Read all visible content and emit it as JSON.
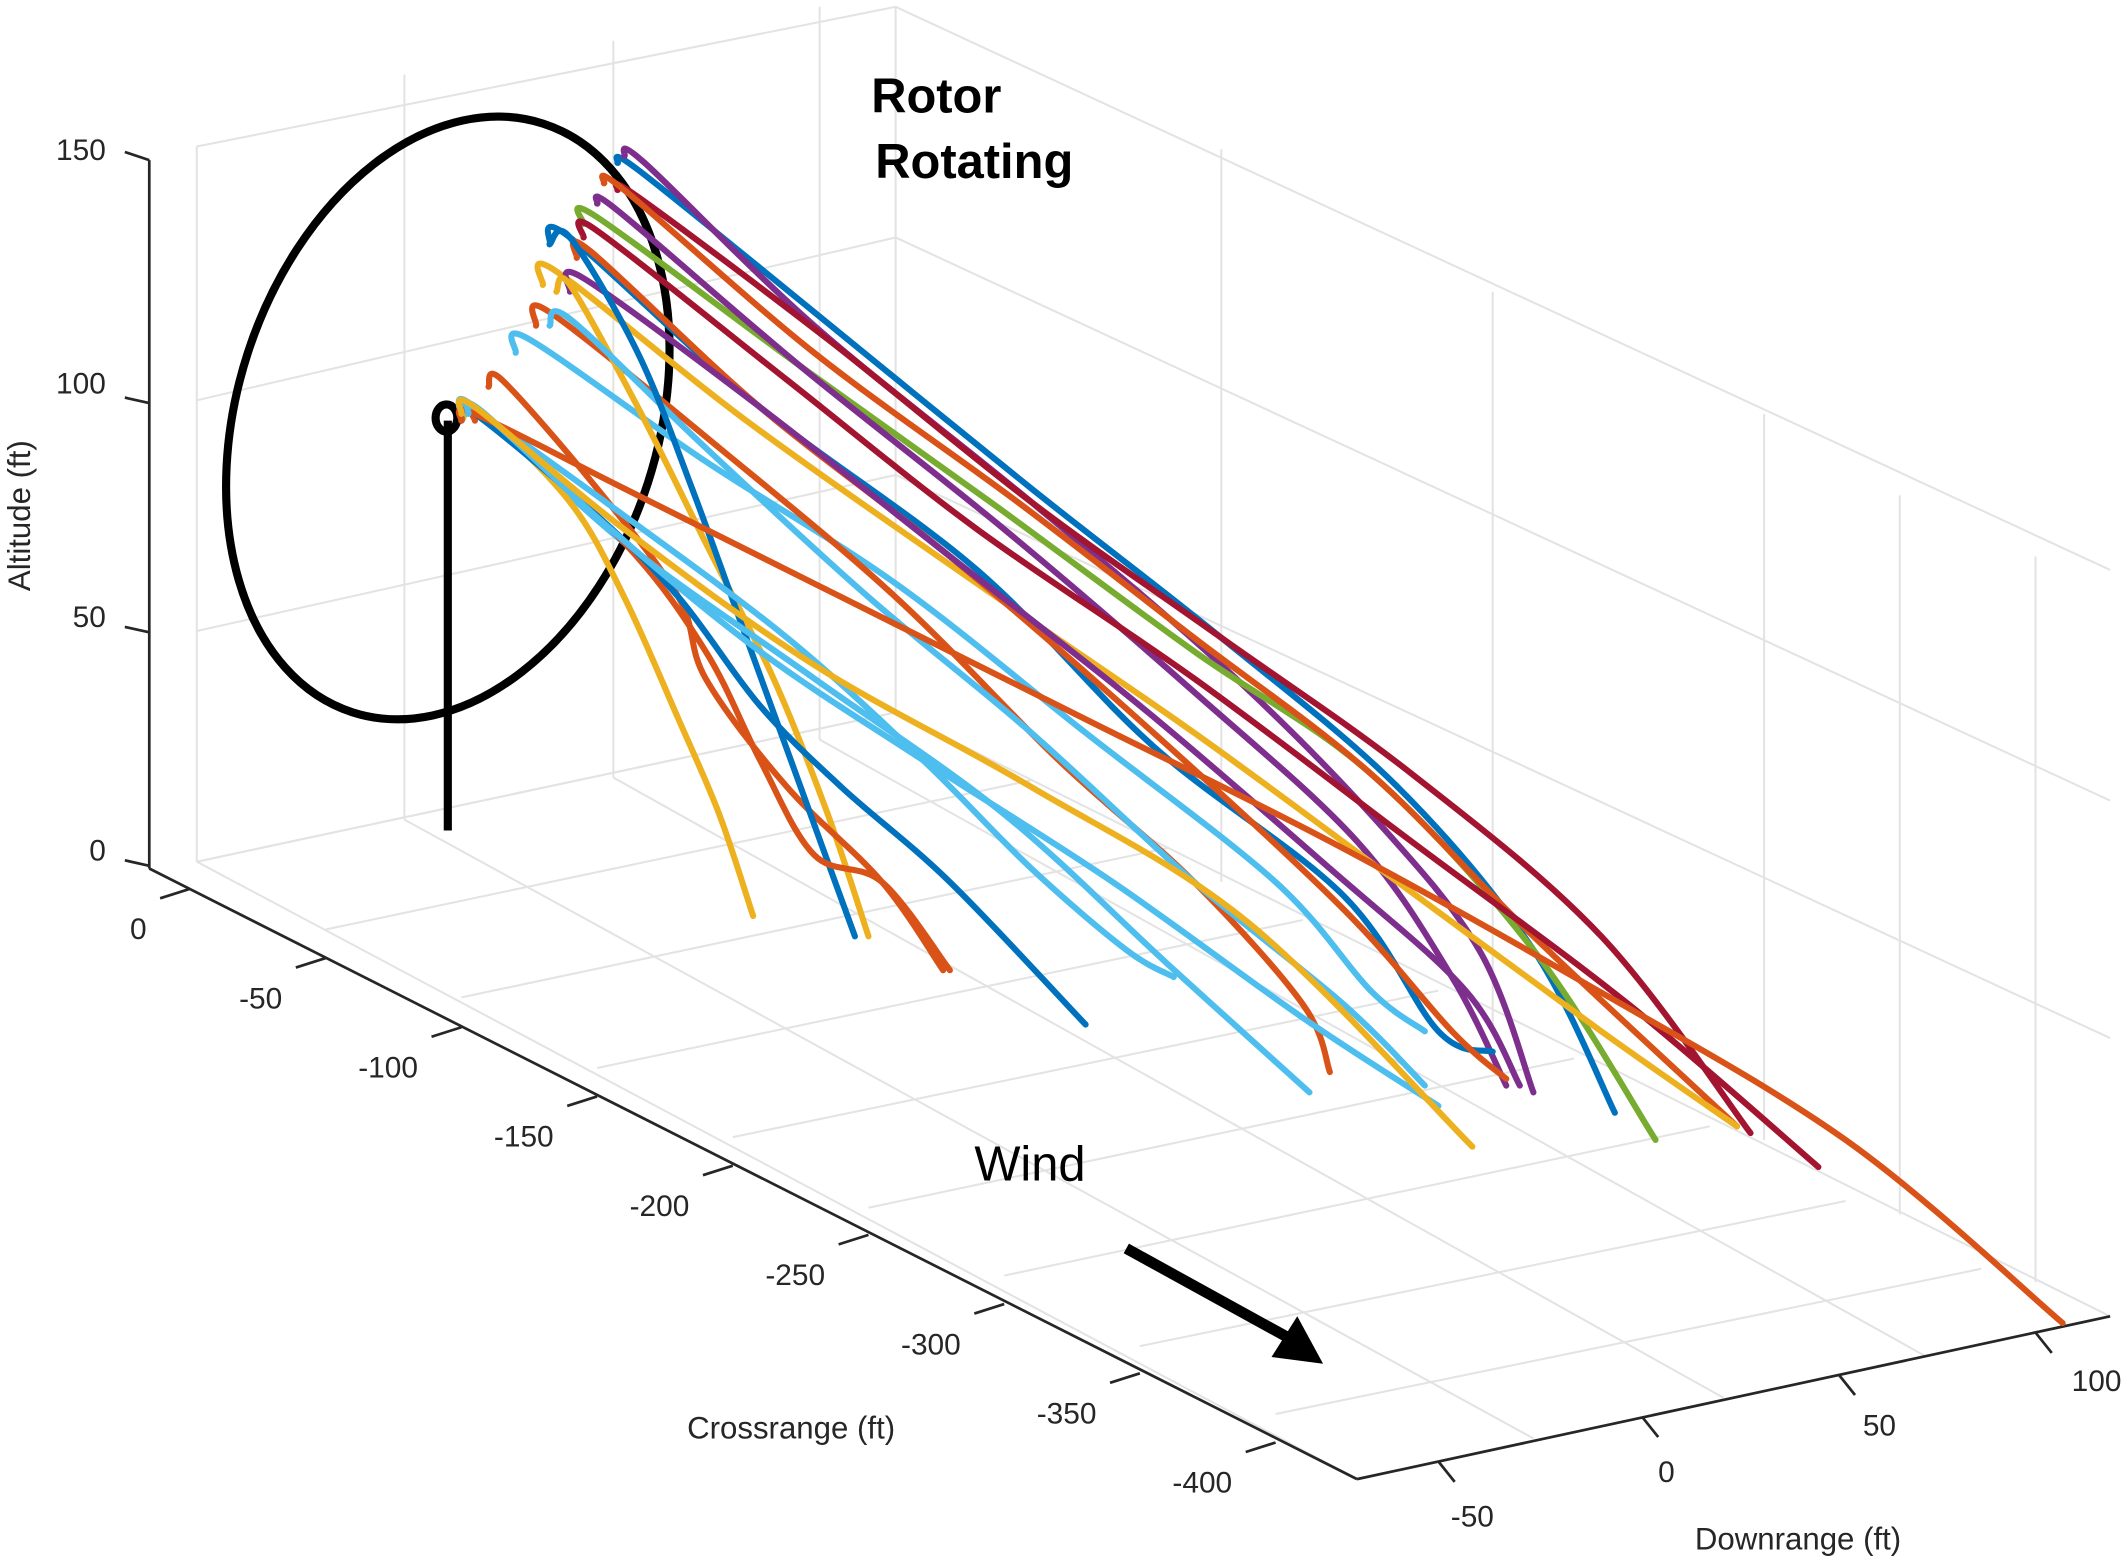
{
  "chart_data": {
    "type": "line3d",
    "annotations": {
      "rotor_line1": "Rotor",
      "rotor_line2": "Rotating",
      "wind": "Wind"
    },
    "axes": {
      "z": {
        "label": "Altitude (ft)",
        "ticks": [
          0,
          50,
          100,
          150
        ]
      },
      "y": {
        "label": "Crossrange (ft)",
        "ticks": [
          0,
          -50,
          -100,
          -150,
          -200,
          -250,
          -300,
          -350,
          -400
        ]
      },
      "x": {
        "label": "Downrange (ft)",
        "ticks": [
          -50,
          0,
          50,
          100
        ]
      }
    },
    "grid": true,
    "colors": {
      "blue": "#0072BD",
      "orange": "#D95319",
      "yellow": "#EDB120",
      "purple": "#7E2F8E",
      "green": "#77AC30",
      "cyan": "#4DBEEE",
      "maroon": "#A2142F",
      "structure": "#000000"
    },
    "turbine": {
      "tower_height": 95,
      "rotor_center_height": 95
    },
    "trajectories": [
      {
        "color": "#0072BD",
        "pts": [
          [
            455,
            120
          ],
          [
            470,
            125
          ],
          [
            600,
            230
          ],
          [
            760,
            360
          ],
          [
            900,
            470
          ],
          [
            1030,
            580
          ],
          [
            1130,
            700
          ],
          [
            1190,
            820
          ]
        ]
      },
      {
        "color": "#7E2F8E",
        "pts": [
          [
            460,
            115
          ],
          [
            475,
            120
          ],
          [
            600,
            240
          ],
          [
            760,
            370
          ],
          [
            900,
            490
          ],
          [
            1010,
            600
          ],
          [
            1090,
            700
          ],
          [
            1130,
            805
          ]
        ]
      },
      {
        "color": "#A2142F",
        "pts": [
          [
            455,
            140
          ],
          [
            470,
            145
          ],
          [
            610,
            250
          ],
          [
            760,
            370
          ],
          [
            900,
            470
          ],
          [
            1040,
            570
          ],
          [
            1180,
            690
          ],
          [
            1290,
            835
          ]
        ]
      },
      {
        "color": "#77AC30",
        "pts": [
          [
            430,
            165
          ],
          [
            440,
            160
          ],
          [
            590,
            270
          ],
          [
            730,
            370
          ],
          [
            880,
            480
          ],
          [
            1010,
            570
          ],
          [
            1130,
            700
          ],
          [
            1220,
            840
          ]
        ]
      },
      {
        "color": "#D95319",
        "pts": [
          [
            445,
            135
          ],
          [
            460,
            140
          ],
          [
            600,
            260
          ],
          [
            750,
            370
          ],
          [
            880,
            470
          ],
          [
            1010,
            570
          ],
          [
            1130,
            690
          ],
          [
            1280,
            830
          ]
        ]
      },
      {
        "color": "#7E2F8E",
        "pts": [
          [
            440,
            150
          ],
          [
            455,
            155
          ],
          [
            590,
            270
          ],
          [
            740,
            390
          ],
          [
            880,
            510
          ],
          [
            1000,
            620
          ],
          [
            1070,
            720
          ],
          [
            1110,
            800
          ]
        ]
      },
      {
        "color": "#0072BD",
        "pts": [
          [
            405,
            180
          ],
          [
            420,
            175
          ],
          [
            560,
            300
          ],
          [
            720,
            420
          ],
          [
            850,
            550
          ],
          [
            990,
            660
          ],
          [
            1060,
            760
          ],
          [
            1100,
            775
          ]
        ]
      },
      {
        "color": "#A2142F",
        "pts": [
          [
            430,
            175
          ],
          [
            440,
            170
          ],
          [
            580,
            280
          ],
          [
            720,
            390
          ],
          [
            880,
            500
          ],
          [
            1040,
            620
          ],
          [
            1200,
            740
          ],
          [
            1340,
            860
          ]
        ]
      },
      {
        "color": "#EDB120",
        "pts": [
          [
            400,
            210
          ],
          [
            410,
            200
          ],
          [
            550,
            310
          ],
          [
            720,
            430
          ],
          [
            880,
            540
          ],
          [
            1030,
            650
          ],
          [
            1180,
            760
          ],
          [
            1280,
            830
          ]
        ]
      },
      {
        "color": "#D95319",
        "pts": [
          [
            425,
            190
          ],
          [
            435,
            185
          ],
          [
            560,
            300
          ],
          [
            700,
            410
          ],
          [
            850,
            540
          ],
          [
            990,
            670
          ],
          [
            1070,
            760
          ],
          [
            1110,
            795
          ]
        ]
      },
      {
        "color": "#7E2F8E",
        "pts": [
          [
            420,
            215
          ],
          [
            430,
            205
          ],
          [
            560,
            300
          ],
          [
            700,
            410
          ],
          [
            840,
            520
          ],
          [
            980,
            640
          ],
          [
            1080,
            730
          ],
          [
            1120,
            800
          ]
        ]
      },
      {
        "color": "#4DBEEE",
        "pts": [
          [
            380,
            260
          ],
          [
            390,
            250
          ],
          [
            520,
            340
          ],
          [
            660,
            430
          ],
          [
            800,
            540
          ],
          [
            940,
            650
          ],
          [
            1010,
            730
          ],
          [
            1050,
            760
          ]
        ]
      },
      {
        "color": "#D95319",
        "pts": [
          [
            395,
            240
          ],
          [
            405,
            230
          ],
          [
            530,
            330
          ],
          [
            660,
            440
          ],
          [
            780,
            560
          ],
          [
            880,
            650
          ],
          [
            960,
            740
          ],
          [
            980,
            790
          ]
        ]
      },
      {
        "color": "#EDB120",
        "pts": [
          [
            410,
            215
          ],
          [
            420,
            210
          ],
          [
            470,
            300
          ],
          [
            520,
            400
          ],
          [
            570,
            500
          ],
          [
            610,
            600
          ],
          [
            640,
            690
          ]
        ]
      },
      {
        "color": "#4DBEEE",
        "pts": [
          [
            405,
            240
          ],
          [
            420,
            235
          ],
          [
            520,
            330
          ],
          [
            640,
            440
          ],
          [
            760,
            540
          ],
          [
            880,
            650
          ],
          [
            990,
            740
          ],
          [
            1050,
            800
          ]
        ]
      },
      {
        "color": "#D95319",
        "pts": [
          [
            360,
            285
          ],
          [
            370,
            280
          ],
          [
            440,
            360
          ],
          [
            500,
            440
          ],
          [
            520,
            500
          ],
          [
            580,
            580
          ],
          [
            650,
            650
          ],
          [
            695,
            715
          ]
        ]
      },
      {
        "color": "#0072BD",
        "pts": [
          [
            405,
            180
          ],
          [
            420,
            175
          ],
          [
            470,
            260
          ],
          [
            510,
            360
          ],
          [
            550,
            470
          ],
          [
            590,
            580
          ],
          [
            630,
            690
          ]
        ]
      },
      {
        "color": "#4DBEEE",
        "pts": [
          [
            340,
            305
          ],
          [
            350,
            300
          ],
          [
            460,
            400
          ],
          [
            600,
            500
          ],
          [
            740,
            600
          ],
          [
            860,
            710
          ],
          [
            965,
            805
          ]
        ]
      },
      {
        "color": "#D95319",
        "pts": [
          [
            350,
            310
          ],
          [
            355,
            305
          ],
          [
            460,
            400
          ],
          [
            520,
            480
          ],
          [
            560,
            560
          ],
          [
            600,
            630
          ],
          [
            650,
            650
          ],
          [
            700,
            715
          ]
        ]
      },
      {
        "color": "#EDB120",
        "pts": [
          [
            340,
            310
          ],
          [
            355,
            305
          ],
          [
            420,
            370
          ],
          [
            460,
            440
          ],
          [
            500,
            530
          ],
          [
            530,
            600
          ],
          [
            555,
            675
          ]
        ]
      },
      {
        "color": "#0072BD",
        "pts": [
          [
            340,
            310
          ],
          [
            350,
            305
          ],
          [
            440,
            380
          ],
          [
            500,
            440
          ],
          [
            560,
            520
          ],
          [
            620,
            580
          ],
          [
            700,
            650
          ],
          [
            800,
            755
          ]
        ]
      },
      {
        "color": "#4DBEEE",
        "pts": [
          [
            340,
            305
          ],
          [
            350,
            302
          ],
          [
            460,
            380
          ],
          [
            580,
            470
          ],
          [
            680,
            560
          ],
          [
            760,
            640
          ],
          [
            830,
            700
          ],
          [
            865,
            720
          ]
        ]
      },
      {
        "color": "#D95319",
        "pts": [
          [
            340,
            310
          ],
          [
            350,
            305
          ],
          [
            460,
            360
          ],
          [
            620,
            440
          ],
          [
            800,
            530
          ],
          [
            980,
            620
          ],
          [
            1160,
            720
          ],
          [
            1360,
            840
          ],
          [
            1520,
            975
          ]
        ]
      },
      {
        "color": "#4DBEEE",
        "pts": [
          [
            345,
            305
          ],
          [
            355,
            303
          ],
          [
            450,
            390
          ],
          [
            560,
            480
          ],
          [
            680,
            560
          ],
          [
            820,
            650
          ],
          [
            960,
            750
          ],
          [
            1060,
            815
          ]
        ]
      },
      {
        "color": "#EDB120",
        "pts": [
          [
            340,
            305
          ],
          [
            350,
            300
          ],
          [
            460,
            390
          ],
          [
            600,
            490
          ],
          [
            760,
            580
          ],
          [
            920,
            680
          ],
          [
            1085,
            845
          ]
        ]
      }
    ]
  }
}
